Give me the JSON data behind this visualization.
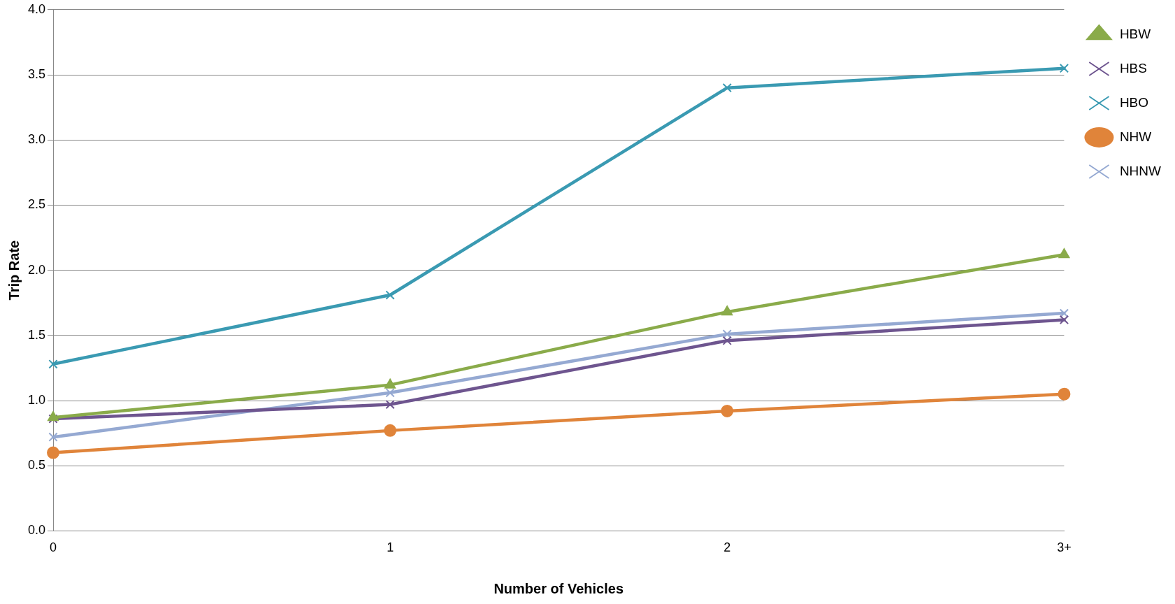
{
  "chart_data": {
    "type": "line",
    "xlabel": "Number of Vehicles",
    "ylabel": "Trip Rate",
    "categories": [
      "0",
      "1",
      "2",
      "3+"
    ],
    "series": [
      {
        "name": "HBW",
        "color": "#8aab4a",
        "marker": "triangle",
        "values": [
          0.87,
          1.12,
          1.68,
          2.12
        ]
      },
      {
        "name": "HBS",
        "color": "#6e558f",
        "marker": "cross",
        "values": [
          0.86,
          0.97,
          1.46,
          1.62
        ]
      },
      {
        "name": "HBO",
        "color": "#3a9ab2",
        "marker": "cross",
        "values": [
          1.28,
          1.81,
          3.4,
          3.55
        ]
      },
      {
        "name": "NHW",
        "color": "#e0843a",
        "marker": "circle",
        "values": [
          0.6,
          0.77,
          0.92,
          1.05
        ]
      },
      {
        "name": "NHNW",
        "color": "#95a9d2",
        "marker": "cross",
        "values": [
          0.72,
          1.06,
          1.51,
          1.67
        ]
      }
    ],
    "ylim": [
      0,
      4
    ],
    "yticks": [
      {
        "value": 0,
        "label": "0.0"
      },
      {
        "value": 0.5,
        "label": "0.5"
      },
      {
        "value": 1,
        "label": "1.0"
      },
      {
        "value": 1.5,
        "label": "1.5"
      },
      {
        "value": 2,
        "label": "2.0"
      },
      {
        "value": 2.5,
        "label": "2.5"
      },
      {
        "value": 3,
        "label": "3.0"
      },
      {
        "value": 3.5,
        "label": "3.5"
      },
      {
        "value": 4,
        "label": "4.0"
      }
    ],
    "grid": "y",
    "legend": "top right",
    "line_style": "solid"
  }
}
